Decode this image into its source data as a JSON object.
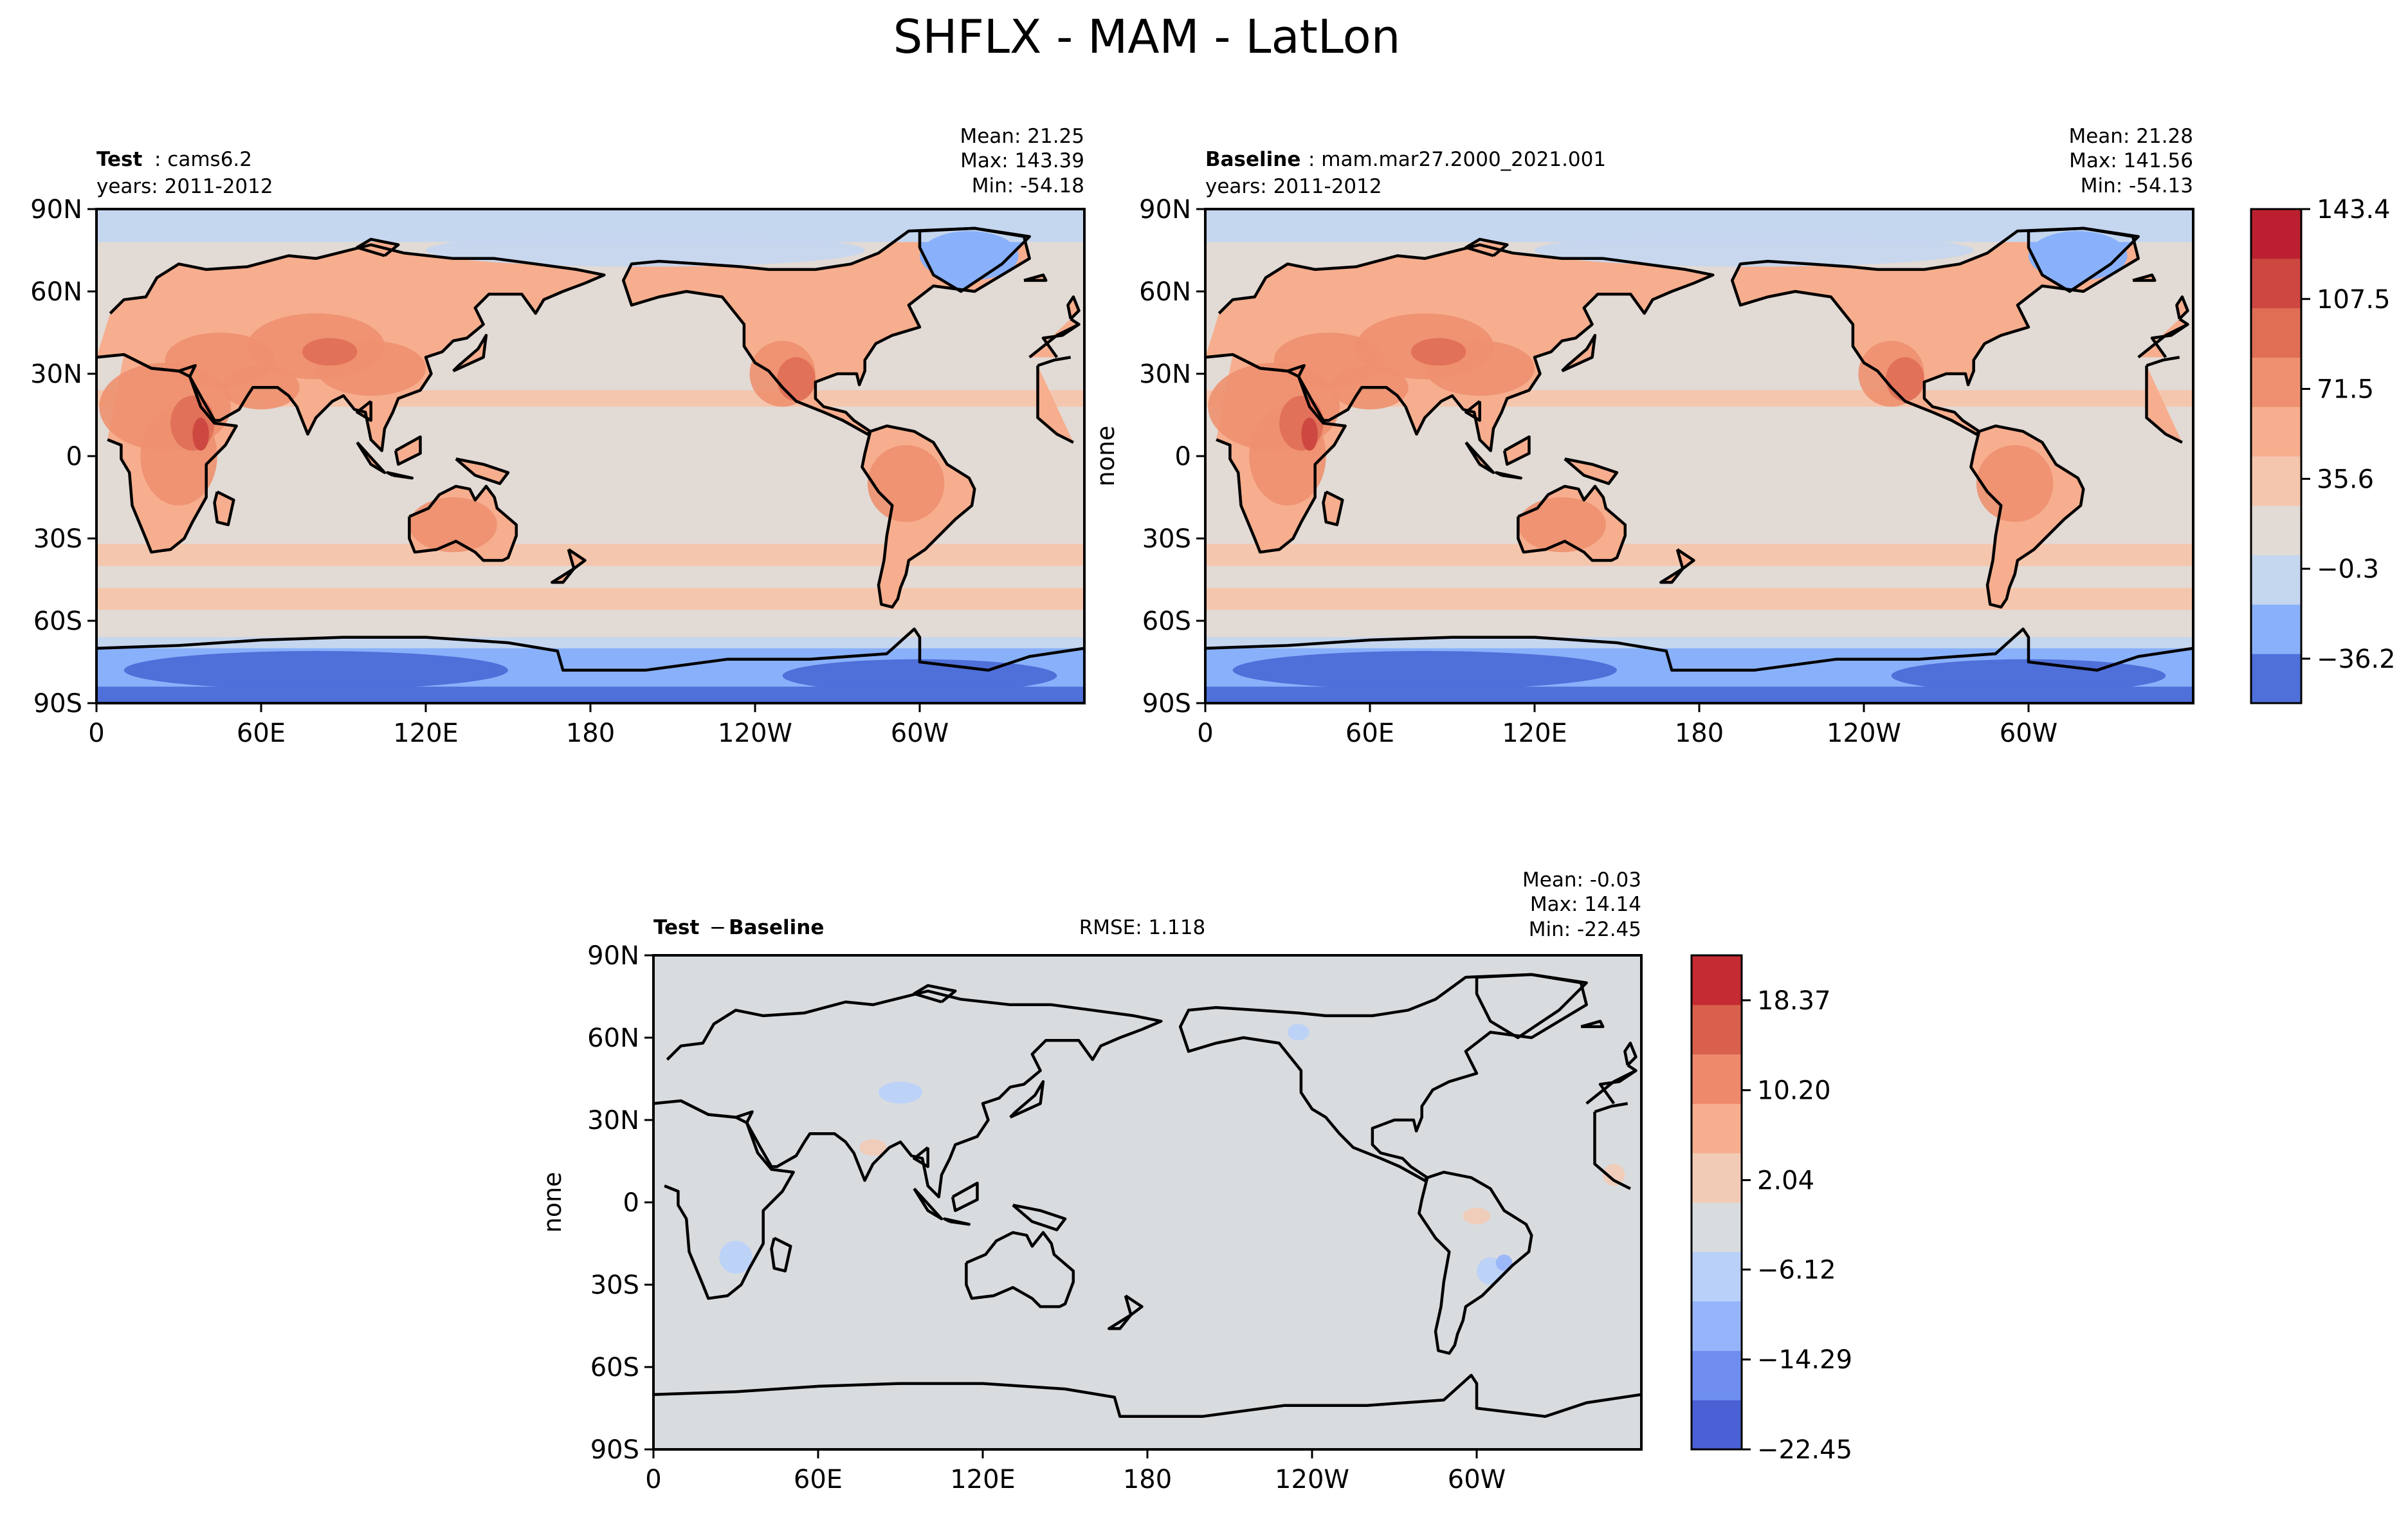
{
  "figure": {
    "title": "SHFLX - MAM - LatLon"
  },
  "colors": {
    "main_levels": [
      "#4f6fd9",
      "#89b1fb",
      "#c5d6ef",
      "#e2dad5",
      "#f4c6ad",
      "#f6ae8e",
      "#ee906f",
      "#df6e55",
      "#cd4840",
      "#bc2030"
    ],
    "diff_levels": [
      "#4a60d4",
      "#6f8ef0",
      "#96b4fb",
      "#b9d0f9",
      "#d9dcdf",
      "#f2cbb6",
      "#f6ae8e",
      "#ee8a6b",
      "#d9604d",
      "#c42b33"
    ],
    "land_outline": "#000000"
  },
  "chart_data": [
    {
      "type": "heatmap",
      "panel": "test",
      "label_bold": "Test",
      "label_rest": ": cams6.2",
      "years": "years: 2011-2012",
      "mean": "Mean: 21.25",
      "max": "Max: 143.39",
      "min": "Min: -54.18",
      "ylabel": "",
      "xticks": [
        "0",
        "60E",
        "120E",
        "180",
        "120W",
        "60W"
      ],
      "yticks": [
        "90N",
        "60N",
        "30N",
        "0",
        "30S",
        "60S",
        "90S"
      ],
      "xlim": [
        0,
        360
      ],
      "ylim": [
        -90,
        90
      ]
    },
    {
      "type": "heatmap",
      "panel": "baseline",
      "label_bold": "Baseline",
      "label_rest": ": mam.mar27.2000_2021.001",
      "years": "years: 2011-2012",
      "mean": "Mean: 21.28",
      "max": "Max: 141.56",
      "min": "Min: -54.13",
      "ylabel": "none",
      "xticks": [
        "0",
        "60E",
        "120E",
        "180",
        "120W",
        "60W"
      ],
      "yticks": [
        "90N",
        "60N",
        "30N",
        "0",
        "30S",
        "60S",
        "90S"
      ],
      "xlim": [
        0,
        360
      ],
      "ylim": [
        -90,
        90
      ],
      "colorbar_ticks": [
        "143.4",
        "107.5",
        "71.5",
        "35.6",
        "−0.3",
        "−36.2"
      ],
      "colorbar_range": [
        -54.2,
        143.4
      ]
    },
    {
      "type": "heatmap",
      "panel": "difference",
      "label_bold_1": "Test",
      "label_mid": " − ",
      "label_bold_2": "Baseline",
      "rmse": "RMSE: 1.118",
      "mean": "Mean: -0.03",
      "max": "Max: 14.14",
      "min": "Min: -22.45",
      "ylabel": "none",
      "xticks": [
        "0",
        "60E",
        "120E",
        "180",
        "120W",
        "60W"
      ],
      "yticks": [
        "90N",
        "60N",
        "30N",
        "0",
        "30S",
        "60S",
        "90S"
      ],
      "xlim": [
        0,
        360
      ],
      "ylim": [
        -90,
        90
      ],
      "colorbar_ticks": [
        "18.37",
        "10.20",
        "2.04",
        "−6.12",
        "−14.29",
        "−22.45"
      ],
      "colorbar_range": [
        -22.45,
        22.45
      ]
    }
  ]
}
